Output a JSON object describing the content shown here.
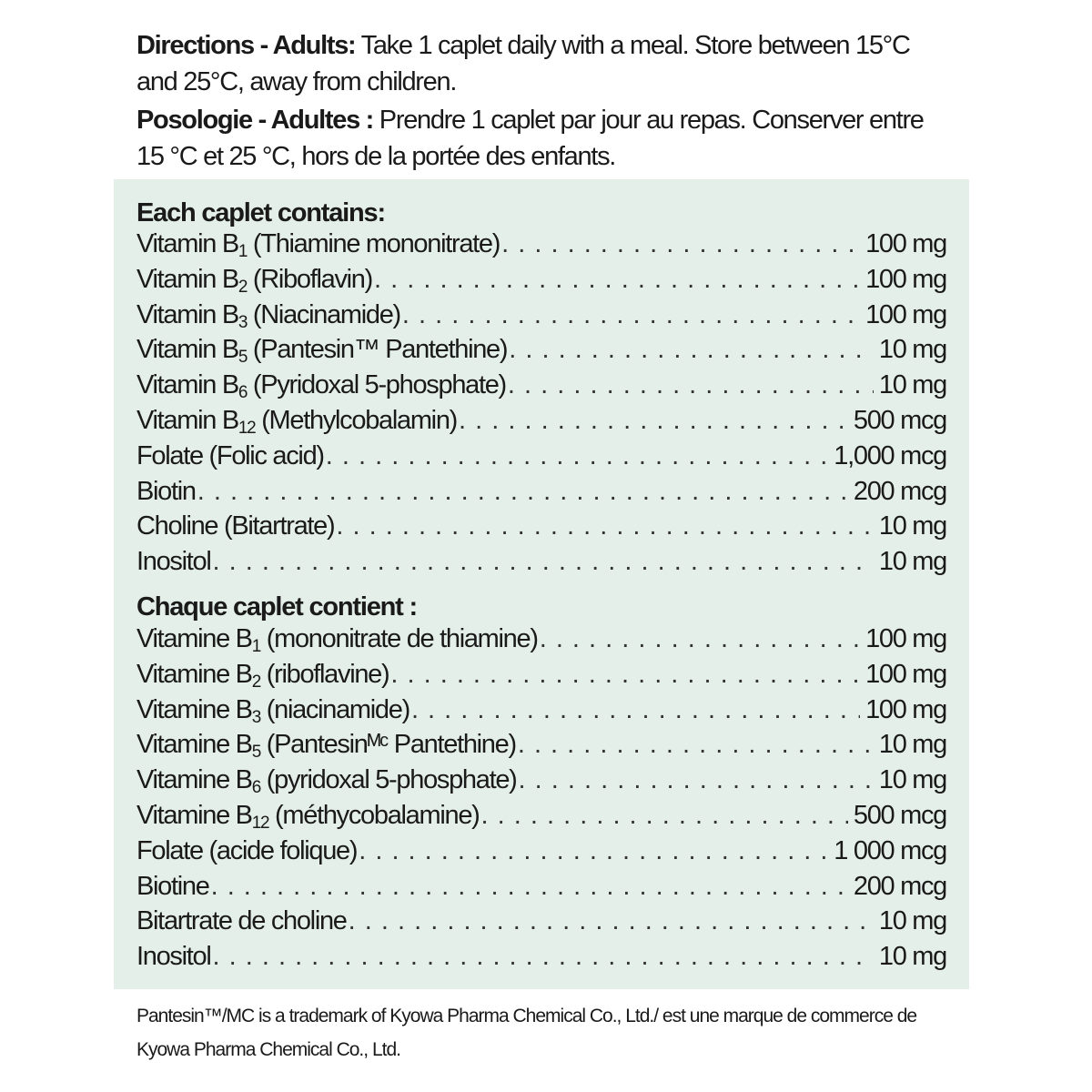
{
  "directions": {
    "en_label": "Directions - Adults:",
    "en_text": " Take 1 caplet daily with a meal. Store between 15°C and 25°C, away from children.",
    "fr_label": "Posologie - Adultes :",
    "fr_text": " Prendre 1 caplet par jour au repas. Conserver entre 15 °C et 25 °C, hors de la portée des enfants."
  },
  "box_color": "#e5efea",
  "english": {
    "heading": "Each caplet contains:",
    "items": [
      {
        "pre": "Vitamin B",
        "sub": "1",
        "post": " (Thiamine mononitrate)",
        "amount": "100 mg"
      },
      {
        "pre": "Vitamin B",
        "sub": "2",
        "post": " (Riboflavin)",
        "amount": "100 mg"
      },
      {
        "pre": "Vitamin B",
        "sub": "3",
        "post": " (Niacinamide)",
        "amount": "100 mg"
      },
      {
        "pre": "Vitamin B",
        "sub": "5",
        "post": " (Pantesin™ Pantethine)",
        "amount": "10 mg"
      },
      {
        "pre": "Vitamin B",
        "sub": "6",
        "post": " (Pyridoxal 5-phosphate)",
        "amount": "10 mg"
      },
      {
        "pre": "Vitamin B",
        "sub": "12",
        "post": " (Methylcobalamin)",
        "amount": "500 mcg"
      },
      {
        "pre": "Folate (Folic acid)",
        "sub": "",
        "post": "",
        "amount": "1,000 mcg"
      },
      {
        "pre": "Biotin",
        "sub": "",
        "post": "",
        "amount": "200 mcg"
      },
      {
        "pre": "Choline (Bitartrate)",
        "sub": "",
        "post": "",
        "amount": "10 mg"
      },
      {
        "pre": "Inositol",
        "sub": "",
        "post": "",
        "amount": "10 mg"
      }
    ]
  },
  "french": {
    "heading": "Chaque caplet contient :",
    "items": [
      {
        "pre": "Vitamine B",
        "sub": "1",
        "post": " (mononitrate de thiamine)",
        "amount": "100 mg"
      },
      {
        "pre": "Vitamine B",
        "sub": "2",
        "post": " (riboflavine)",
        "amount": "100 mg"
      },
      {
        "pre": "Vitamine B",
        "sub": "3",
        "post": " (niacinamide)",
        "amount": "100 mg"
      },
      {
        "pre": "Vitamine B",
        "sub": "5",
        "post": " (Pantesinᴹᶜ Pantethine)",
        "amount": "10 mg"
      },
      {
        "pre": "Vitamine B",
        "sub": "6",
        "post": " (pyridoxal 5-phosphate)",
        "amount": "10 mg"
      },
      {
        "pre": "Vitamine B",
        "sub": "12",
        "post": " (méthycobalamine)",
        "amount": "500 mcg"
      },
      {
        "pre": "Folate (acide folique)",
        "sub": "",
        "post": "",
        "amount": "1 000 mcg"
      },
      {
        "pre": "Biotine",
        "sub": "",
        "post": "",
        "amount": "200 mcg"
      },
      {
        "pre": "Bitartrate de choline",
        "sub": "",
        "post": "",
        "amount": "10 mg"
      },
      {
        "pre": "Inositol",
        "sub": "",
        "post": "",
        "amount": "10 mg"
      }
    ]
  },
  "footnote": "Pantesin™/MC is a trademark of Kyowa Pharma Chemical Co., Ltd./ est une marque de commerce de Kyowa Pharma Chemical Co., Ltd."
}
